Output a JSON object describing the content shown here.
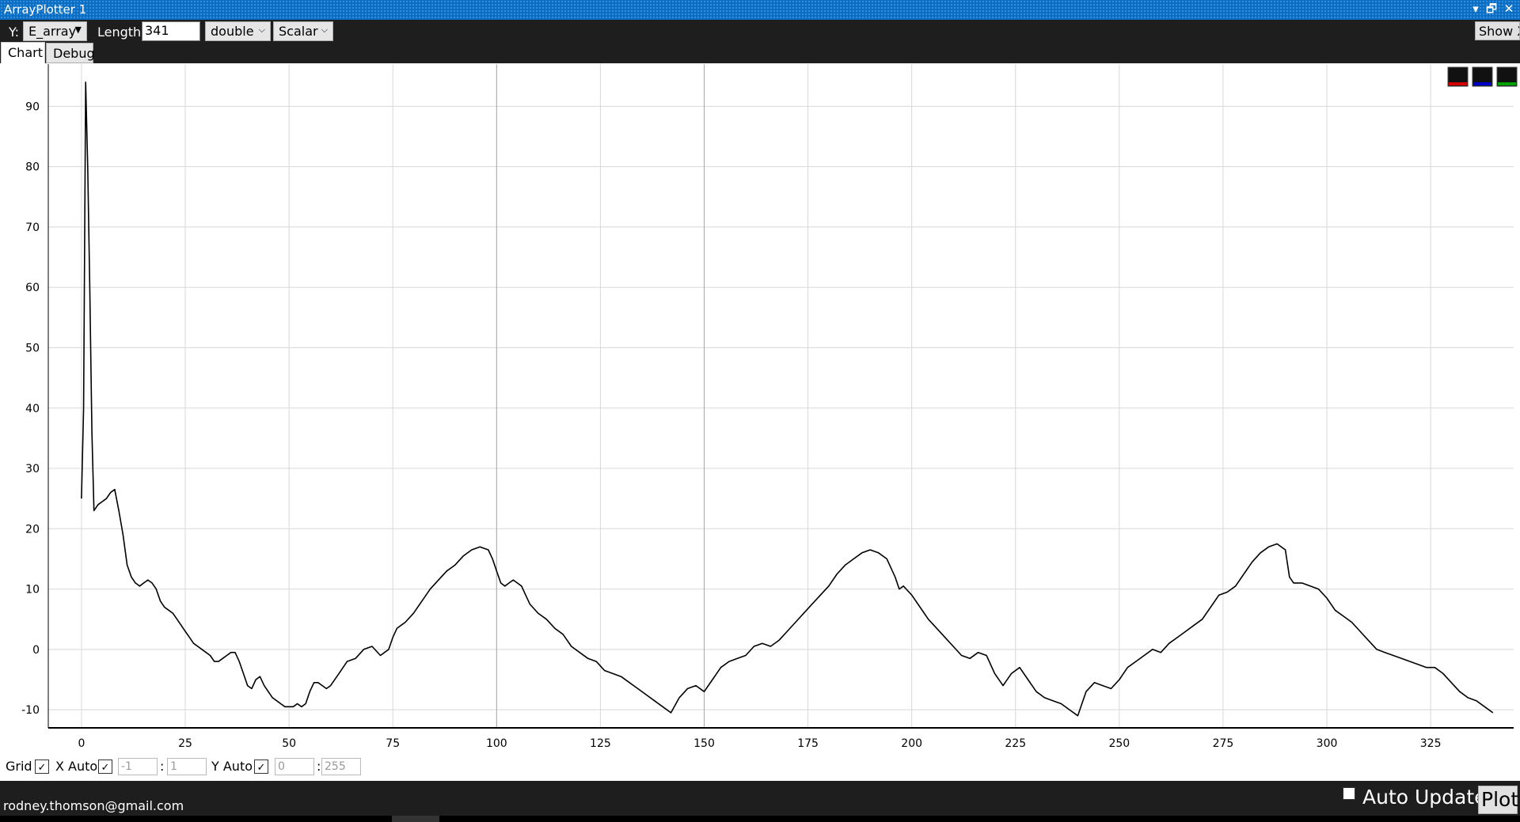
{
  "window": {
    "title": "ArrayPlotter 1",
    "buttons": [
      "▾",
      "🗗",
      "✕"
    ]
  },
  "toolbar": {
    "y_label": "Y:",
    "y_value": "E_array",
    "length_label": "Length:",
    "length_value": "341",
    "type_value": "double",
    "mode_value": "Scalar",
    "show_x_label": "Show X"
  },
  "tabs": [
    {
      "label": "Chart",
      "active": true
    },
    {
      "label": "Debug",
      "active": false
    }
  ],
  "controls": {
    "grid_label": "Grid",
    "x_auto_label": "X Auto",
    "x_min": "-1",
    "x_max": "1",
    "separator": ":",
    "y_auto_label": "Y Auto",
    "y_min": "0",
    "y_max": "255"
  },
  "status": {
    "email": "rodney.thomson@gmail.com",
    "auto_update_label": "Auto Update",
    "plot_label": "Plot"
  },
  "legend_swatches": [
    "#d40000",
    "#0000c8",
    "#00a000"
  ],
  "chart_data": {
    "type": "line",
    "title": "",
    "xlabel": "",
    "ylabel": "",
    "xlim": [
      -8,
      345
    ],
    "ylim": [
      -13,
      97
    ],
    "x_ticks": [
      0,
      25,
      50,
      75,
      100,
      125,
      150,
      175,
      200,
      225,
      250,
      275,
      300,
      325
    ],
    "y_ticks": [
      -10,
      0,
      10,
      20,
      30,
      40,
      50,
      60,
      70,
      80,
      90
    ],
    "grid": true,
    "line_color": "#000000",
    "series": [
      {
        "x": [
          0,
          0.5,
          1,
          1.5,
          2,
          2.5,
          3,
          4,
          5,
          6,
          7,
          8,
          9,
          10,
          11,
          12,
          13,
          14,
          15,
          16,
          17,
          18,
          19,
          20,
          21,
          22,
          23,
          24,
          25,
          26,
          27,
          28,
          29,
          30,
          31,
          32,
          33,
          34,
          35,
          36,
          37,
          38,
          39,
          40,
          41,
          42,
          43,
          44,
          45,
          46,
          47,
          48,
          49,
          50,
          51,
          52,
          53,
          54,
          55,
          56,
          57,
          58,
          59,
          60,
          62,
          64,
          66,
          68,
          70,
          72,
          74,
          75,
          76,
          78,
          80,
          82,
          84,
          86,
          88,
          90,
          92,
          94,
          96,
          98,
          99,
          100,
          101,
          102,
          103,
          104,
          105,
          106,
          107,
          108,
          110,
          112,
          114,
          116,
          118,
          120,
          122,
          124,
          126,
          128,
          130,
          132,
          134,
          136,
          138,
          140,
          142,
          144,
          146,
          148,
          150,
          152,
          154,
          156,
          158,
          160,
          162,
          164,
          166,
          168,
          170,
          172,
          174,
          176,
          178,
          180,
          182,
          184,
          186,
          188,
          190,
          192,
          194,
          196,
          197,
          198,
          200,
          202,
          204,
          206,
          208,
          210,
          212,
          214,
          216,
          218,
          220,
          222,
          224,
          226,
          228,
          230,
          232,
          234,
          236,
          238,
          240,
          242,
          244,
          246,
          248,
          250,
          252,
          254,
          256,
          258,
          260,
          262,
          264,
          266,
          268,
          270,
          272,
          274,
          276,
          278,
          280,
          282,
          284,
          286,
          288,
          290,
          291,
          292,
          294,
          296,
          298,
          300,
          302,
          304,
          306,
          308,
          310,
          312,
          314,
          316,
          318,
          320,
          322,
          324,
          326,
          328,
          330,
          332,
          334,
          336,
          338,
          340
        ],
        "y": [
          25,
          40,
          94,
          80,
          60,
          36,
          23,
          24,
          24.5,
          25,
          26,
          26.5,
          23,
          19,
          14,
          12,
          11,
          10.5,
          11,
          11.5,
          11,
          10,
          8,
          7,
          6.5,
          6,
          5,
          4,
          3,
          2,
          1,
          0.5,
          0,
          -0.5,
          -1,
          -2,
          -2,
          -1.5,
          -1,
          -0.5,
          -0.5,
          -2,
          -4,
          -6,
          -6.5,
          -5,
          -4.5,
          -6,
          -7,
          -8,
          -8.5,
          -9,
          -9.5,
          -9.5,
          -9.5,
          -9,
          -9.5,
          -9,
          -7,
          -5.5,
          -5.5,
          -6,
          -6.5,
          -6,
          -4,
          -2,
          -1.5,
          0,
          0.5,
          -1,
          0,
          2,
          3.5,
          4.5,
          6,
          8,
          10,
          11.5,
          13,
          14,
          15.5,
          16.5,
          17,
          16.5,
          15,
          13,
          11,
          10.5,
          11,
          11.5,
          11,
          10.5,
          9,
          7.5,
          6,
          5,
          3.5,
          2.5,
          0.5,
          -0.5,
          -1.5,
          -2,
          -3.5,
          -4,
          -4.5,
          -5.5,
          -6.5,
          -7.5,
          -8.5,
          -9.5,
          -10.5,
          -8,
          -6.5,
          -6,
          -7,
          -5,
          -3,
          -2,
          -1.5,
          -1,
          0.5,
          1,
          0.5,
          1.5,
          3,
          4.5,
          6,
          7.5,
          9,
          10.5,
          12.5,
          14,
          15,
          16,
          16.5,
          16,
          15,
          12,
          10,
          10.5,
          9,
          7,
          5,
          3.5,
          2,
          0.5,
          -1,
          -1.5,
          -0.5,
          -1,
          -4,
          -6,
          -4,
          -3,
          -5,
          -7,
          -8,
          -8.5,
          -9,
          -10,
          -11,
          -7,
          -5.5,
          -6,
          -6.5,
          -5,
          -3,
          -2,
          -1,
          0,
          -0.5,
          1,
          2,
          3,
          4,
          5,
          7,
          9,
          9.5,
          10.5,
          12.5,
          14.5,
          16,
          17,
          17.5,
          16.5,
          12,
          11,
          11,
          10.5,
          10,
          8.5,
          6.5,
          5.5,
          4.5,
          3,
          1.5,
          0,
          -0.5,
          -1,
          -1.5,
          -2,
          -2.5,
          -3,
          -3,
          -4,
          -5.5,
          -7,
          -8,
          -8.5,
          -9.5,
          -10.5
        ]
      }
    ]
  }
}
